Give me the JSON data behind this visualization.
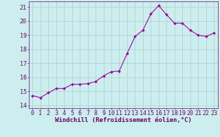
{
  "x": [
    0,
    1,
    2,
    3,
    4,
    5,
    6,
    7,
    8,
    9,
    10,
    11,
    12,
    13,
    14,
    15,
    16,
    17,
    18,
    19,
    20,
    21,
    22,
    23
  ],
  "y": [
    14.7,
    14.55,
    14.9,
    15.2,
    15.2,
    15.5,
    15.5,
    15.55,
    15.7,
    16.1,
    16.4,
    16.45,
    17.7,
    18.9,
    19.35,
    20.5,
    21.1,
    20.45,
    19.85,
    19.85,
    19.35,
    19.0,
    18.9,
    19.15
  ],
  "line_color": "#990099",
  "marker_color": "#990099",
  "bg_color": "#cceeee",
  "grid_color": "#aacccc",
  "axis_color": "#660066",
  "xlabel": "Windchill (Refroidissement éolien,°C)",
  "ylim": [
    13.8,
    21.4
  ],
  "xlim": [
    -0.5,
    23.5
  ],
  "yticks": [
    14,
    15,
    16,
    17,
    18,
    19,
    20,
    21
  ],
  "xticks": [
    0,
    1,
    2,
    3,
    4,
    5,
    6,
    7,
    8,
    9,
    10,
    11,
    12,
    13,
    14,
    15,
    16,
    17,
    18,
    19,
    20,
    21,
    22,
    23
  ],
  "label_fontsize": 6.5,
  "tick_fontsize": 6.0
}
